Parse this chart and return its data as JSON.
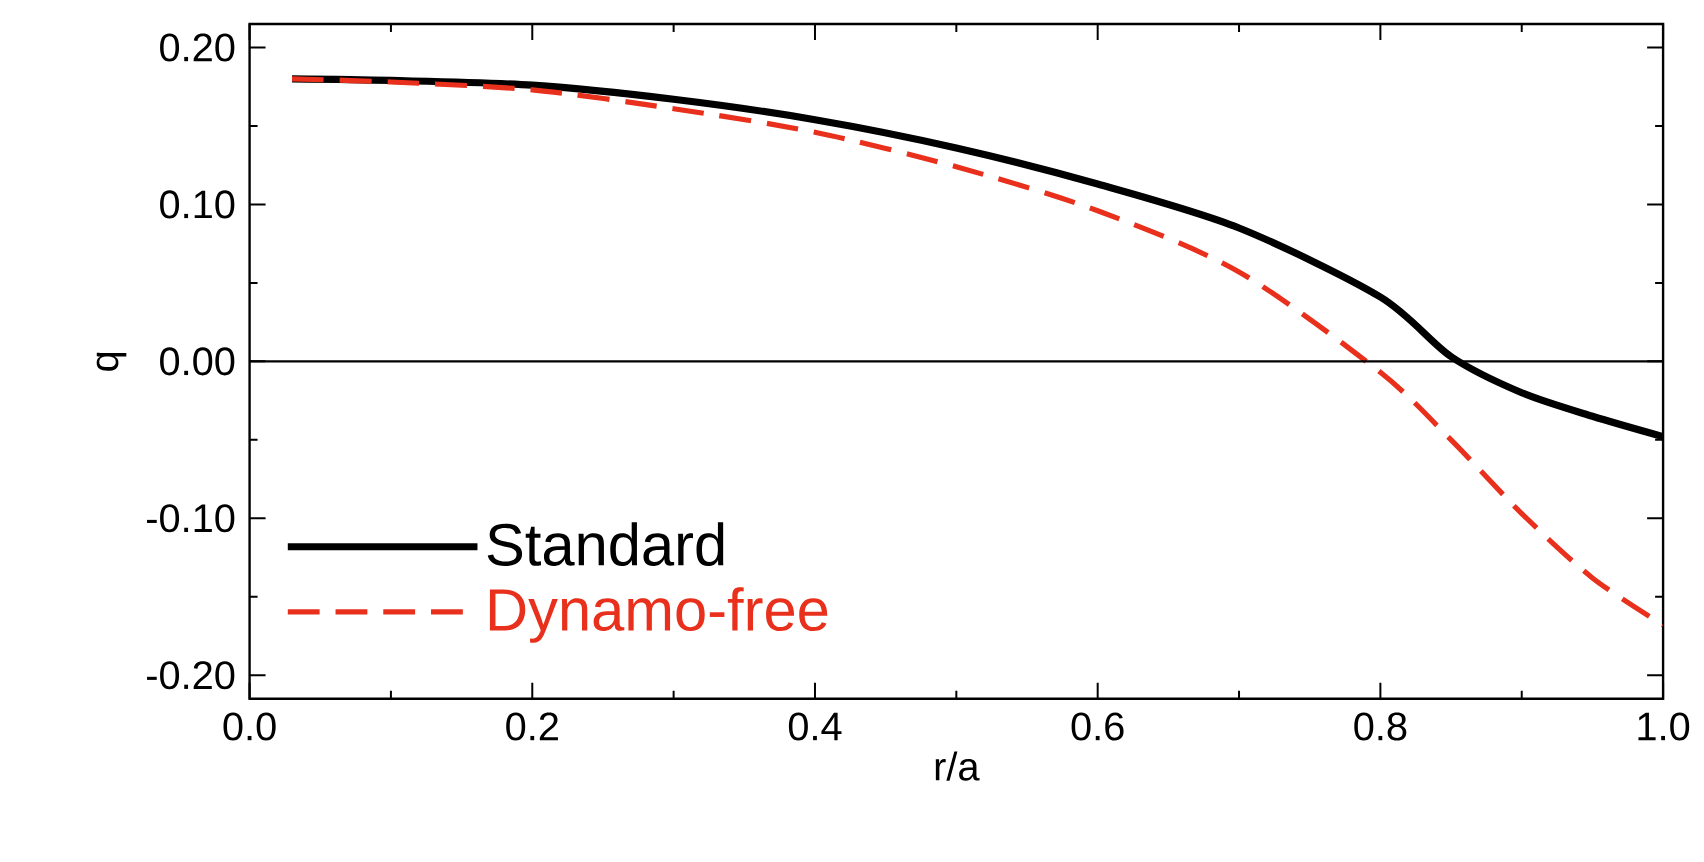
{
  "chart_data": {
    "type": "line",
    "xlabel": "r/a",
    "ylabel": "q",
    "xlim": [
      0,
      1
    ],
    "ylim": [
      -0.215,
      0.215
    ],
    "xticks": [
      {
        "value": 0,
        "label": "0.0"
      },
      {
        "value": 0.2,
        "label": "0.2"
      },
      {
        "value": 0.4,
        "label": "0.4"
      },
      {
        "value": 0.6,
        "label": "0.6"
      },
      {
        "value": 0.8,
        "label": "0.8"
      },
      {
        "value": 1,
        "label": "1.0"
      }
    ],
    "yticks": [
      {
        "value": -0.2,
        "label": "-0.20"
      },
      {
        "value": -0.1,
        "label": "-0.10"
      },
      {
        "value": 0,
        "label": "0.00"
      },
      {
        "value": 0.1,
        "label": "0.10"
      },
      {
        "value": 0.2,
        "label": "0.20"
      }
    ],
    "x": [
      0.03,
      0.1,
      0.2,
      0.3,
      0.4,
      0.5,
      0.6,
      0.7,
      0.8,
      0.85,
      0.9,
      0.95,
      1.0
    ],
    "series": [
      {
        "name": "Standard",
        "color": "#000000",
        "line_style": "solid",
        "values": [
          0.18,
          0.179,
          0.176,
          0.167,
          0.154,
          0.136,
          0.113,
          0.085,
          0.041,
          0.003,
          -0.02,
          -0.035,
          -0.048
        ]
      },
      {
        "name": "Dynamo-free",
        "color": "#e8301c",
        "line_style": "dashed",
        "values": [
          0.18,
          0.178,
          0.173,
          0.161,
          0.146,
          0.124,
          0.096,
          0.057,
          -0.007,
          -0.05,
          -0.097,
          -0.138,
          -0.168
        ]
      }
    ],
    "ref_lines": [
      {
        "axis": "y",
        "value": 0,
        "color": "#000000"
      }
    ],
    "legend": "bottom left",
    "grid": false
  }
}
